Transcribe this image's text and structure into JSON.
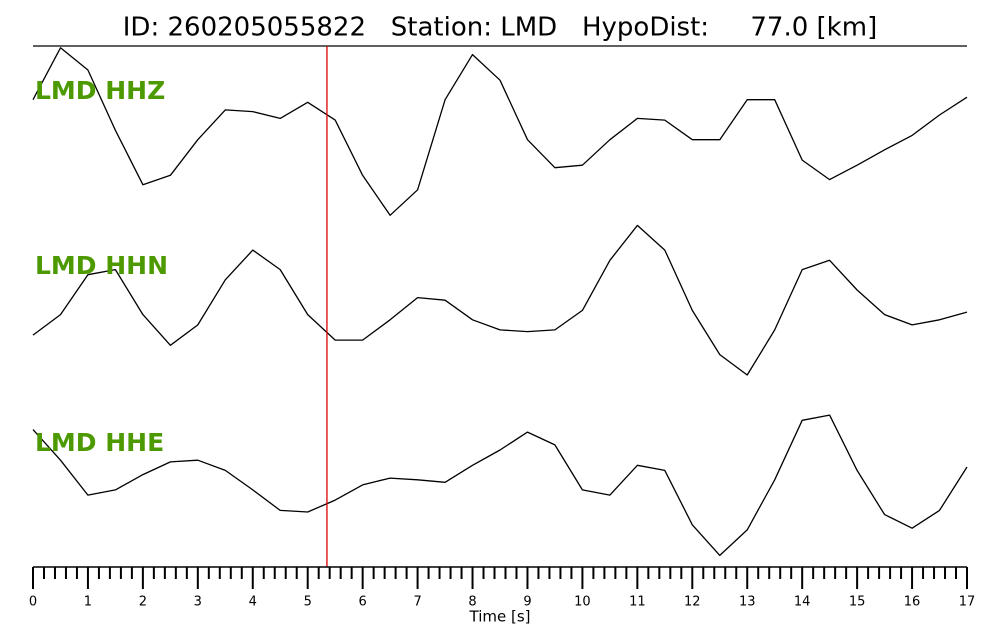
{
  "chart_data": {
    "type": "line",
    "title": "ID: 260205055822   Station: LMD   HypoDist:     77.0 [km]",
    "xlabel": "Time [s]",
    "xlim": [
      0,
      17
    ],
    "xticks": [
      0,
      1,
      2,
      3,
      4,
      5,
      6,
      7,
      8,
      9,
      10,
      11,
      12,
      13,
      14,
      15,
      16,
      17
    ],
    "ylim": [
      -1,
      1
    ],
    "label_color": "#4c9a00",
    "pick": {
      "x": 5.35,
      "color": "#e00000"
    },
    "x": [
      0,
      0.5,
      1,
      1.5,
      2,
      2.5,
      3,
      3.5,
      4,
      4.5,
      5,
      5.5,
      6,
      6.5,
      7,
      7.5,
      8,
      8.5,
      9,
      9.5,
      10,
      10.5,
      11,
      11.5,
      12,
      12.5,
      13,
      13.5,
      14,
      14.5,
      15,
      15.5,
      16,
      16.5,
      17
    ],
    "series": [
      {
        "name": "LMD HHZ",
        "color": "#000000",
        "values": [
          0.38,
          0.99,
          0.73,
          0.02,
          -0.62,
          -0.51,
          -0.09,
          0.26,
          0.24,
          0.16,
          0.35,
          0.14,
          -0.51,
          -0.98,
          -0.68,
          0.38,
          0.91,
          0.61,
          -0.09,
          -0.42,
          -0.39,
          -0.09,
          0.16,
          0.14,
          -0.09,
          -0.09,
          0.38,
          0.38,
          -0.33,
          -0.56,
          -0.39,
          -0.21,
          -0.04,
          0.2,
          0.41
        ]
      },
      {
        "name": "LMD HHN",
        "color": "#000000",
        "values": [
          -0.33,
          -0.09,
          0.38,
          0.44,
          -0.09,
          -0.45,
          -0.21,
          0.32,
          0.67,
          0.44,
          -0.09,
          -0.39,
          -0.39,
          -0.15,
          0.11,
          0.08,
          -0.15,
          -0.27,
          -0.29,
          -0.27,
          -0.04,
          0.55,
          0.96,
          0.67,
          -0.04,
          -0.56,
          -0.8,
          -0.27,
          0.44,
          0.55,
          0.2,
          -0.09,
          -0.21,
          -0.15,
          -0.06
        ]
      },
      {
        "name": "LMD HHE",
        "color": "#000000",
        "values": [
          0.64,
          0.28,
          -0.13,
          -0.07,
          0.11,
          0.26,
          0.28,
          0.16,
          -0.07,
          -0.31,
          -0.33,
          -0.19,
          -0.01,
          0.07,
          0.05,
          0.02,
          0.22,
          0.4,
          0.61,
          0.46,
          -0.07,
          -0.13,
          0.22,
          0.16,
          -0.48,
          -0.84,
          -0.54,
          0.05,
          0.75,
          0.81,
          0.16,
          -0.36,
          -0.52,
          -0.31,
          0.2
        ]
      }
    ]
  }
}
